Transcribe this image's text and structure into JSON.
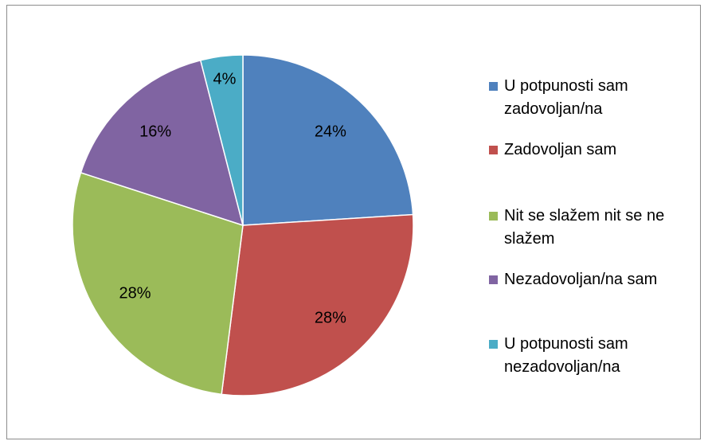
{
  "chart_data": {
    "type": "pie",
    "categories": [
      "U potpunosti sam zadovoljan/na",
      "Zadovoljan sam",
      "Nit se slažem nit se ne slažem",
      "Nezadovoljan/na sam",
      "U potpunosti sam nezadovoljan/na"
    ],
    "values": [
      24,
      28,
      28,
      16,
      4
    ],
    "value_labels": [
      "24%",
      "28%",
      "28%",
      "16%",
      "4%"
    ],
    "colors": [
      "#4f81bd",
      "#c0504d",
      "#9bbb59",
      "#8064a2",
      "#4bacc6"
    ],
    "legend": "right"
  }
}
